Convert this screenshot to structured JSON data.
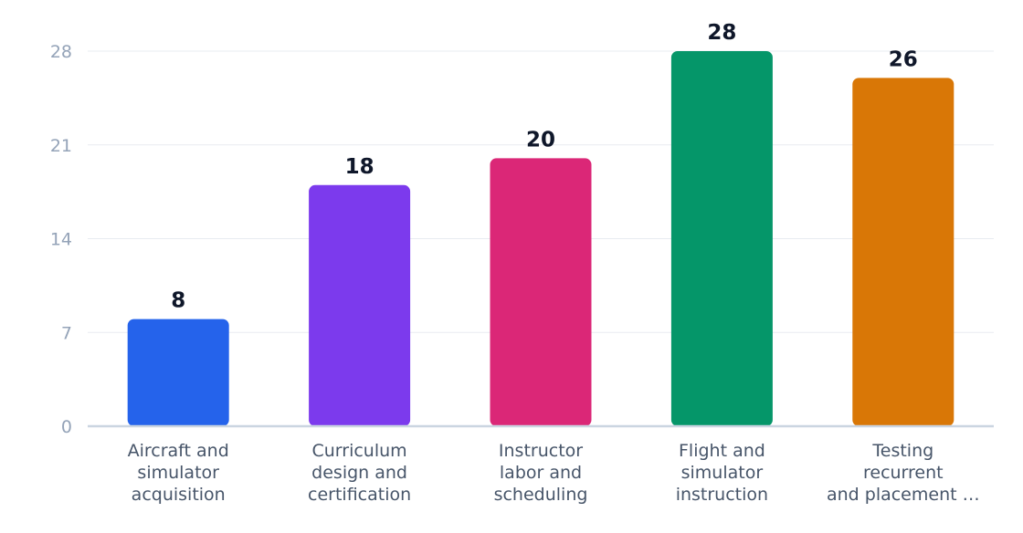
{
  "chart_data": {
    "type": "bar",
    "title": "",
    "xlabel": "",
    "ylabel": "",
    "categories": [
      [
        "Aircraft and",
        "simulator",
        "acquisition"
      ],
      [
        "Curriculum",
        "design and",
        "certification"
      ],
      [
        "Instructor",
        "labor and",
        "scheduling"
      ],
      [
        "Flight and",
        "simulator",
        "instruction"
      ],
      [
        "Testing",
        "recurrent",
        "and placement …"
      ]
    ],
    "values": [
      8,
      18,
      20,
      28,
      26
    ],
    "value_labels": [
      "8",
      "18",
      "20",
      "28",
      "26"
    ],
    "colors": [
      "#2563eb",
      "#7c3aed",
      "#db2777",
      "#059669",
      "#d97706"
    ],
    "yticks": [
      0,
      7,
      14,
      21,
      28
    ],
    "ytick_labels": [
      "0",
      "7",
      "14",
      "21",
      "28"
    ],
    "ylim": [
      0,
      28
    ],
    "grid": true,
    "legend": "none"
  }
}
